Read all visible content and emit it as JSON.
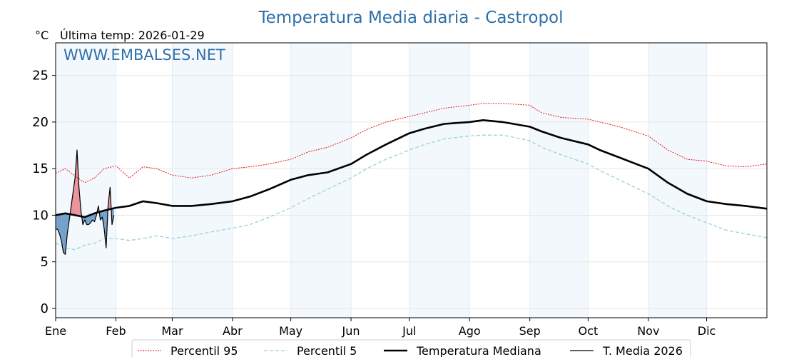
{
  "chart_data": {
    "type": "line",
    "title": "Temperatura Media diaria - Castropol",
    "unit": "°C",
    "last_temp_label": "Última temp: 2026-01-29",
    "watermark": "WWW.EMBALSES.NET",
    "xlim": [
      0,
      366
    ],
    "ylim": [
      -1,
      28.5
    ],
    "y_ticks": [
      0,
      5,
      10,
      15,
      20,
      25
    ],
    "month_ticks": [
      {
        "label": "Ene",
        "day": 0
      },
      {
        "label": "Feb",
        "day": 31
      },
      {
        "label": "Mar",
        "day": 60
      },
      {
        "label": "Abr",
        "day": 91
      },
      {
        "label": "May",
        "day": 121
      },
      {
        "label": "Jun",
        "day": 152
      },
      {
        "label": "Jul",
        "day": 182
      },
      {
        "label": "Ago",
        "day": 213
      },
      {
        "label": "Sep",
        "day": 244
      },
      {
        "label": "Oct",
        "day": 274
      },
      {
        "label": "Nov",
        "day": 305
      },
      {
        "label": "Dic",
        "day": 335
      }
    ],
    "shaded_months": [
      [
        0,
        31
      ],
      [
        60,
        91
      ],
      [
        121,
        152
      ],
      [
        182,
        213
      ],
      [
        244,
        274
      ],
      [
        305,
        335
      ]
    ],
    "grid": true,
    "legend_position": "bottom",
    "series": [
      {
        "name": "Percentil 95",
        "color": "#e8000b",
        "style": "dotted-thin",
        "points": [
          [
            0,
            14.5
          ],
          [
            5,
            15.0
          ],
          [
            10,
            14.2
          ],
          [
            15,
            13.5
          ],
          [
            20,
            14.0
          ],
          [
            25,
            15.0
          ],
          [
            31,
            15.3
          ],
          [
            38,
            14.0
          ],
          [
            45,
            15.2
          ],
          [
            52,
            15.0
          ],
          [
            60,
            14.3
          ],
          [
            70,
            14.0
          ],
          [
            80,
            14.3
          ],
          [
            91,
            15.0
          ],
          [
            100,
            15.2
          ],
          [
            110,
            15.5
          ],
          [
            121,
            16.0
          ],
          [
            130,
            16.8
          ],
          [
            140,
            17.3
          ],
          [
            152,
            18.3
          ],
          [
            160,
            19.2
          ],
          [
            170,
            20.0
          ],
          [
            182,
            20.6
          ],
          [
            190,
            21.0
          ],
          [
            200,
            21.5
          ],
          [
            213,
            21.8
          ],
          [
            220,
            22.0
          ],
          [
            230,
            22.0
          ],
          [
            244,
            21.8
          ],
          [
            250,
            21.0
          ],
          [
            260,
            20.5
          ],
          [
            274,
            20.3
          ],
          [
            280,
            20.0
          ],
          [
            290,
            19.5
          ],
          [
            305,
            18.5
          ],
          [
            315,
            17.0
          ],
          [
            325,
            16.0
          ],
          [
            335,
            15.8
          ],
          [
            345,
            15.3
          ],
          [
            355,
            15.2
          ],
          [
            366,
            15.5
          ]
        ]
      },
      {
        "name": "Percentil 5",
        "color": "#9ccfdf",
        "style": "dashed",
        "points": [
          [
            0,
            7.0
          ],
          [
            5,
            6.5
          ],
          [
            10,
            6.3
          ],
          [
            15,
            6.8
          ],
          [
            20,
            7.0
          ],
          [
            25,
            7.5
          ],
          [
            31,
            7.5
          ],
          [
            38,
            7.3
          ],
          [
            45,
            7.5
          ],
          [
            52,
            7.8
          ],
          [
            60,
            7.5
          ],
          [
            70,
            7.8
          ],
          [
            80,
            8.2
          ],
          [
            91,
            8.6
          ],
          [
            100,
            9.0
          ],
          [
            110,
            9.8
          ],
          [
            121,
            10.8
          ],
          [
            130,
            11.8
          ],
          [
            140,
            12.8
          ],
          [
            152,
            14.0
          ],
          [
            160,
            15.0
          ],
          [
            170,
            16.0
          ],
          [
            182,
            17.0
          ],
          [
            190,
            17.6
          ],
          [
            200,
            18.2
          ],
          [
            213,
            18.5
          ],
          [
            220,
            18.6
          ],
          [
            230,
            18.6
          ],
          [
            244,
            18.0
          ],
          [
            250,
            17.3
          ],
          [
            260,
            16.5
          ],
          [
            274,
            15.5
          ],
          [
            280,
            14.8
          ],
          [
            290,
            13.8
          ],
          [
            305,
            12.3
          ],
          [
            315,
            11.0
          ],
          [
            325,
            10.0
          ],
          [
            335,
            9.2
          ],
          [
            345,
            8.4
          ],
          [
            355,
            8.0
          ],
          [
            366,
            7.6
          ]
        ]
      },
      {
        "name": "Temperatura Mediana",
        "color": "#000000",
        "style": "solid-thick",
        "points": [
          [
            0,
            10.0
          ],
          [
            5,
            10.2
          ],
          [
            10,
            10.0
          ],
          [
            15,
            9.8
          ],
          [
            20,
            10.2
          ],
          [
            25,
            10.5
          ],
          [
            31,
            10.8
          ],
          [
            38,
            11.0
          ],
          [
            45,
            11.5
          ],
          [
            52,
            11.3
          ],
          [
            60,
            11.0
          ],
          [
            70,
            11.0
          ],
          [
            80,
            11.2
          ],
          [
            91,
            11.5
          ],
          [
            100,
            12.0
          ],
          [
            110,
            12.8
          ],
          [
            121,
            13.8
          ],
          [
            130,
            14.3
          ],
          [
            140,
            14.6
          ],
          [
            152,
            15.5
          ],
          [
            160,
            16.5
          ],
          [
            170,
            17.6
          ],
          [
            182,
            18.8
          ],
          [
            190,
            19.3
          ],
          [
            200,
            19.8
          ],
          [
            213,
            20.0
          ],
          [
            220,
            20.2
          ],
          [
            230,
            20.0
          ],
          [
            244,
            19.5
          ],
          [
            250,
            19.0
          ],
          [
            260,
            18.3
          ],
          [
            274,
            17.6
          ],
          [
            280,
            17.0
          ],
          [
            290,
            16.2
          ],
          [
            305,
            15.0
          ],
          [
            315,
            13.5
          ],
          [
            325,
            12.3
          ],
          [
            335,
            11.5
          ],
          [
            345,
            11.2
          ],
          [
            355,
            11.0
          ],
          [
            366,
            10.7
          ]
        ]
      },
      {
        "name": "T. Media 2026",
        "color": "#000000",
        "style": "solid-thin",
        "above_fill": "#e8808a",
        "below_fill": "#5a8fbf",
        "points": [
          [
            0,
            8.5
          ],
          [
            1,
            8.5
          ],
          [
            2,
            8.0
          ],
          [
            3,
            7.2
          ],
          [
            4,
            6.0
          ],
          [
            5,
            5.8
          ],
          [
            6,
            8.0
          ],
          [
            7,
            9.5
          ],
          [
            8,
            11.0
          ],
          [
            9,
            12.5
          ],
          [
            10,
            14.0
          ],
          [
            11,
            17.0
          ],
          [
            12,
            13.0
          ],
          [
            13,
            10.5
          ],
          [
            14,
            9.0
          ],
          [
            15,
            9.5
          ],
          [
            16,
            9.0
          ],
          [
            17,
            9.0
          ],
          [
            18,
            9.2
          ],
          [
            19,
            9.5
          ],
          [
            20,
            9.3
          ],
          [
            21,
            10.0
          ],
          [
            22,
            11.0
          ],
          [
            23,
            9.5
          ],
          [
            24,
            9.8
          ],
          [
            25,
            8.5
          ],
          [
            26,
            6.5
          ],
          [
            27,
            11.0
          ],
          [
            28,
            13.0
          ],
          [
            29,
            9.0
          ],
          [
            30,
            10.0
          ]
        ]
      }
    ]
  }
}
